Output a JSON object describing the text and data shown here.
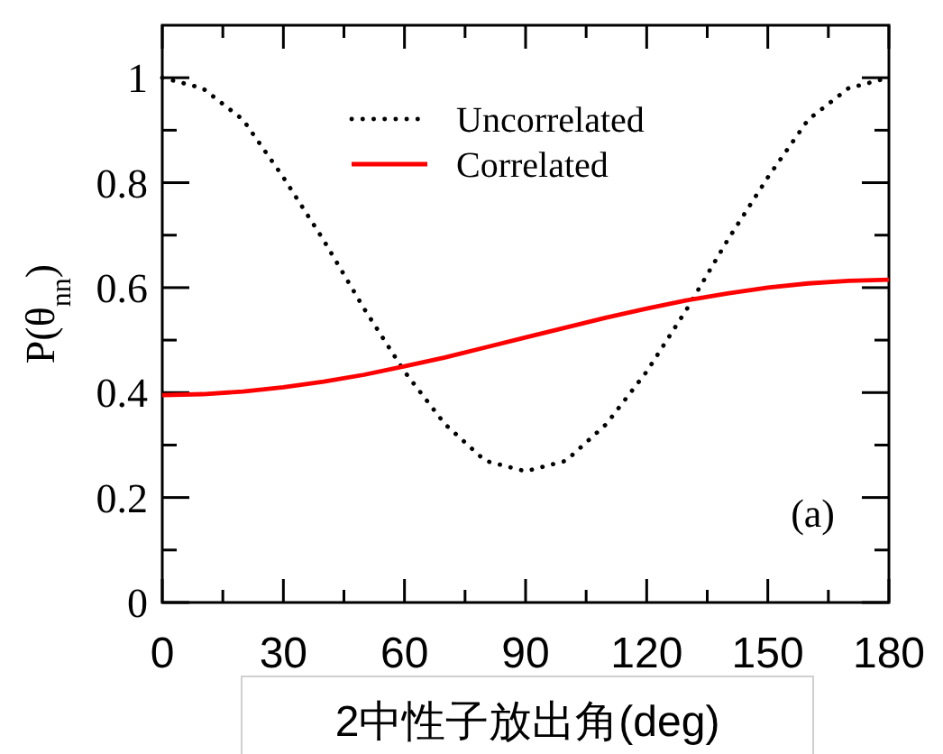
{
  "chart_data": {
    "type": "line",
    "xlabel": "2中性子放出角(deg)",
    "ylabel": "P(θ$_{nn}$)",
    "x": [
      0,
      10,
      20,
      30,
      40,
      50,
      60,
      70,
      80,
      90,
      100,
      110,
      120,
      130,
      140,
      150,
      160,
      170,
      180
    ],
    "series": [
      {
        "name": "Uncorrelated",
        "color": "#000000",
        "line_style": "dotted",
        "values": [
          1.0,
          0.98,
          0.92,
          0.81,
          0.69,
          0.56,
          0.44,
          0.34,
          0.27,
          0.25,
          0.27,
          0.34,
          0.44,
          0.56,
          0.69,
          0.81,
          0.92,
          0.98,
          1.0
        ]
      },
      {
        "name": "Correlated",
        "color": "#ff0000",
        "line_style": "solid",
        "values": [
          0.395,
          0.397,
          0.402,
          0.41,
          0.421,
          0.434,
          0.45,
          0.467,
          0.486,
          0.505,
          0.524,
          0.543,
          0.56,
          0.576,
          0.589,
          0.6,
          0.608,
          0.613,
          0.615
        ]
      }
    ],
    "xlim": [
      0,
      180
    ],
    "ylim": [
      0,
      1.1
    ],
    "xticks": [
      0,
      {
        "value": 15,
        "label": null
      },
      30,
      {
        "value": 45,
        "label": null
      },
      60,
      {
        "value": 75,
        "label": null
      },
      90,
      {
        "value": 105,
        "label": null
      },
      120,
      {
        "value": 135,
        "label": null
      },
      150,
      {
        "value": 165,
        "label": null
      },
      180
    ],
    "yticks": [
      0,
      {
        "value": 0.1,
        "label": null
      },
      0.2,
      {
        "value": 0.3,
        "label": null
      },
      0.4,
      {
        "value": 0.5,
        "label": null
      },
      0.6,
      {
        "value": 0.7,
        "label": null
      },
      0.8,
      {
        "value": 0.9,
        "label": null
      },
      1
    ],
    "legend": "top",
    "grid": false,
    "marker": "none",
    "annotations": [
      "(a)"
    ]
  }
}
